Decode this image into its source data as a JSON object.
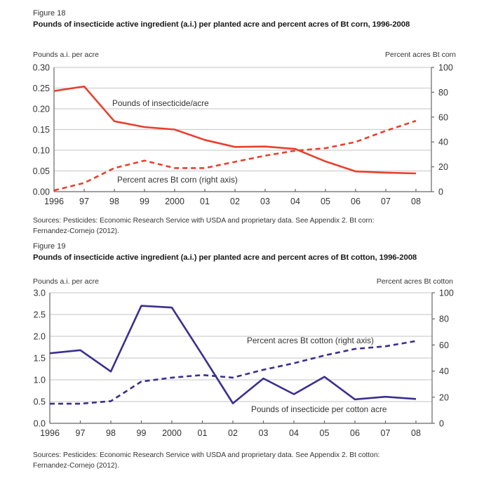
{
  "figures": [
    {
      "figure_label": "Figure 18",
      "title": "Pounds of insecticide active ingredient (a.i.) per planted acre and percent acres of Bt corn, 1996-2008",
      "left_axis_label": "Pounds a.i. per acre",
      "right_axis_label": "Percent acres Bt corn",
      "sources": [
        "Sources: Pesticides: Economic Research Service with USDA and proprietary data. See Appendix 2. Bt corn:",
        "Fernandez-Cornejo (2012)."
      ]
    },
    {
      "figure_label": "Figure 19",
      "title": "Pounds of insecticide active ingredient (a.i.) per planted acre and percent acres of Bt cotton, 1996-2008",
      "left_axis_label": "Pounds a.i. per acre",
      "right_axis_label": "Percent acres Bt cotton",
      "sources": [
        "Sources: Pesticides: Economic Research Service with USDA and proprietary data. See Appendix 2. Bt cotton:",
        "Fernandez-Cornejo (2012)."
      ]
    }
  ],
  "chart_data": [
    {
      "type": "line",
      "title": "Pounds of insecticide active ingredient (a.i.) per planted acre and percent acres of Bt corn, 1996-2008",
      "xlabel": "",
      "ylabel": "Pounds a.i. per acre",
      "ylabel_right": "Percent acres Bt corn",
      "categories": [
        1996,
        1997,
        1998,
        1999,
        2000,
        2001,
        2002,
        2003,
        2004,
        2005,
        2006,
        2007,
        2008
      ],
      "x_tick_labels": [
        "1996",
        "97",
        "98",
        "99",
        "2000",
        "01",
        "02",
        "03",
        "04",
        "05",
        "06",
        "07",
        "08"
      ],
      "ylim": [
        0,
        0.3
      ],
      "y_ticks": [
        0,
        0.05,
        0.1,
        0.15,
        0.2,
        0.25,
        0.3
      ],
      "y_tick_labels": [
        "0.00",
        "0.05",
        "0.10",
        "0.15",
        "0.20",
        "0.25",
        "0.30"
      ],
      "ylim_right": [
        0,
        100
      ],
      "y_ticks_right": [
        0,
        20,
        40,
        60,
        80,
        100
      ],
      "y_tick_labels_right": [
        "0",
        "20",
        "40",
        "60",
        "80",
        "100"
      ],
      "grid": true,
      "legend": "inline-annotations",
      "series": [
        {
          "name": "Pounds of insecticide/acre",
          "label": "Pounds of insecticide/acre",
          "axis": "left",
          "style": "solid",
          "color": "#e8402c",
          "values": [
            0.243,
            0.254,
            0.17,
            0.156,
            0.15,
            0.125,
            0.108,
            0.109,
            0.103,
            0.073,
            0.049,
            0.046,
            0.044
          ]
        },
        {
          "name": "Percent acres Bt corn (right axis)",
          "label": "Percent acres Bt corn (right axis)",
          "axis": "right",
          "style": "dashed",
          "color": "#e8402c",
          "values": [
            1,
            7,
            19,
            25,
            19,
            19,
            24,
            29,
            33,
            35,
            40,
            49,
            57
          ]
        }
      ]
    },
    {
      "type": "line",
      "title": "Pounds of insecticide active ingredient (a.i.) per planted acre and percent acres of Bt cotton, 1996-2008",
      "xlabel": "",
      "ylabel": "Pounds a.i. per acre",
      "ylabel_right": "Percent acres Bt cotton",
      "categories": [
        1996,
        1997,
        1998,
        1999,
        2000,
        2001,
        2002,
        2003,
        2004,
        2005,
        2006,
        2007,
        2008
      ],
      "x_tick_labels": [
        "1996",
        "97",
        "98",
        "99",
        "2000",
        "01",
        "02",
        "03",
        "04",
        "05",
        "06",
        "07",
        "08"
      ],
      "ylim": [
        0,
        3.0
      ],
      "y_ticks": [
        0,
        0.5,
        1.0,
        1.5,
        2.0,
        2.5,
        3.0
      ],
      "y_tick_labels": [
        "0.0",
        "0.5",
        "1.0",
        "1.5",
        "2.0",
        "2.5",
        "3.0"
      ],
      "ylim_right": [
        0,
        100
      ],
      "y_ticks_right": [
        0,
        20,
        40,
        60,
        80,
        100
      ],
      "y_tick_labels_right": [
        "0",
        "20",
        "40",
        "60",
        "80",
        "100"
      ],
      "grid": true,
      "legend": "inline-annotations",
      "series": [
        {
          "name": "Pounds of insecticide per cotton acre",
          "label": "Pounds of insecticide per cotton acre",
          "axis": "left",
          "style": "solid",
          "color": "#3b2f8e",
          "values": [
            1.61,
            1.68,
            1.19,
            2.7,
            2.66,
            1.57,
            0.46,
            1.03,
            0.67,
            1.07,
            0.55,
            0.61,
            0.56
          ]
        },
        {
          "name": "Percent acres Bt cotton (right axis)",
          "label": "Percent acres Bt cotton (right axis)",
          "axis": "right",
          "style": "dashed",
          "color": "#3b2f8e",
          "values": [
            15,
            15,
            17,
            32,
            35,
            37,
            35,
            41,
            46,
            52,
            57,
            59,
            63
          ]
        }
      ]
    }
  ]
}
